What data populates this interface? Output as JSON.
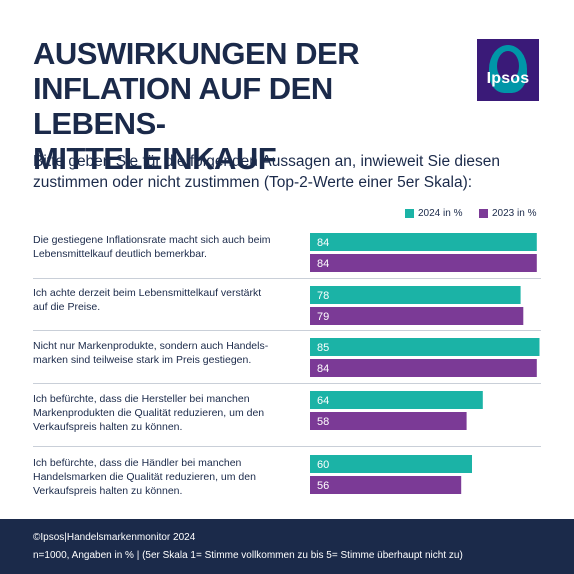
{
  "title_lines": [
    "AUSWIRKUNGEN DER",
    "INFLATION AUF DEN LEBENS-",
    "MITTELEINKAUF"
  ],
  "logo": {
    "text": "Ipsos"
  },
  "subtitle_lines": [
    "Bitte geben Sie für die folgenden Aussagen an, inwieweit Sie diesen",
    "zustimmen oder nicht zustimmen (Top-2-Werte einer 5er Skala):"
  ],
  "colors": {
    "series_2024": "#1bb3a6",
    "series_2023": "#7b3a96",
    "text": "#1b2a4a",
    "footer_bg": "#1b2a4a"
  },
  "chart_data": {
    "type": "bar",
    "orientation": "horizontal",
    "legend_position": "top-right",
    "xlim": [
      0,
      85
    ],
    "categories": [
      [
        "Die gestiegene Inflationsrate macht sich auch beim",
        "Lebensmittelkauf deutlich bemerkbar."
      ],
      [
        "Ich achte derzeit beim Lebensmittelkauf verstärkt",
        "auf die Preise."
      ],
      [
        "Nicht nur Markenprodukte, sondern auch Handels-",
        "marken sind teilweise stark im Preis gestiegen."
      ],
      [
        "Ich befürchte, dass die Hersteller bei manchen",
        "Markenprodukten die Qualität reduzieren, um den",
        "Verkaufspreis halten zu können."
      ],
      [
        "Ich befürchte, dass die Händler bei manchen",
        "Handelsmarken die Qualität reduzieren, um den",
        "Verkaufspreis halten zu können."
      ]
    ],
    "series": [
      {
        "name": "2024 in %",
        "color": "#1bb3a6",
        "values": [
          84,
          78,
          85,
          64,
          60
        ]
      },
      {
        "name": "2023 in %",
        "color": "#7b3a96",
        "values": [
          84,
          79,
          84,
          58,
          56
        ]
      }
    ]
  },
  "footer": {
    "line1": "©Ipsos|Handelsmarkenmonitor 2024",
    "line2": "n=1000, Angaben in %  | (5er Skala 1= Stimme vollkommen zu bis 5= Stimme überhaupt nicht zu)"
  }
}
